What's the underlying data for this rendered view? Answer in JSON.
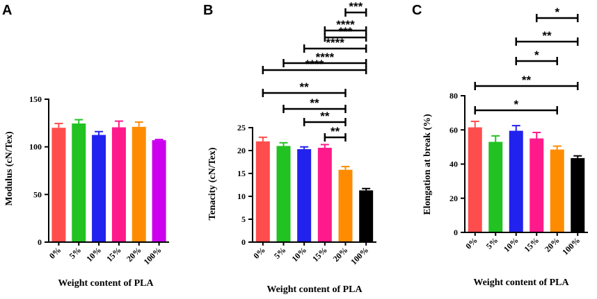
{
  "chart_data": [
    {
      "panel": "A",
      "type": "bar",
      "title": "",
      "xlabel": "Weight content of PLA",
      "ylabel": "Modulus (cN/Tex)",
      "categories": [
        "0%",
        "5%",
        "10%",
        "15%",
        "20%",
        "100%"
      ],
      "values": [
        120,
        124.5,
        112.5,
        120.5,
        121,
        107
      ],
      "errors": [
        4.5,
        4,
        3.5,
        6.5,
        5,
        0.7
      ],
      "colors": [
        "#ff4d4d",
        "#22c222",
        "#2222ee",
        "#ff1a8c",
        "#ff8c00",
        "#cc00ee"
      ],
      "ylim": [
        0,
        150
      ],
      "yticks": [
        0,
        50,
        100,
        150
      ],
      "significance": []
    },
    {
      "panel": "B",
      "type": "bar",
      "title": "",
      "xlabel": "Weight content of PLA",
      "ylabel": "Tenacity (cN/Tex)",
      "categories": [
        "0%",
        "5%",
        "10%",
        "15%",
        "20%",
        "100%"
      ],
      "values": [
        22,
        21,
        20.3,
        20.6,
        15.8,
        11.3
      ],
      "errors": [
        0.9,
        0.7,
        0.5,
        0.7,
        0.7,
        0.4
      ],
      "colors": [
        "#ff4d4d",
        "#22c222",
        "#2222ee",
        "#ff1a8c",
        "#ff8c00",
        "#000000"
      ],
      "ylim": [
        0,
        25
      ],
      "yticks": [
        0,
        5,
        10,
        15,
        20,
        25
      ],
      "significance": [
        {
          "from": 3,
          "to": 4,
          "label": "**"
        },
        {
          "from": 2,
          "to": 4,
          "label": "**"
        },
        {
          "from": 1,
          "to": 4,
          "label": "**"
        },
        {
          "from": 0,
          "to": 4,
          "label": "**"
        },
        {
          "from": 0,
          "to": 5,
          "label": "****"
        },
        {
          "from": 1,
          "to": 5,
          "label": "****"
        },
        {
          "from": 2,
          "to": 5,
          "label": "****"
        },
        {
          "from": 3,
          "to": 5,
          "label": "***"
        },
        {
          "from": 3,
          "to": 5,
          "label": "****"
        },
        {
          "from": 4,
          "to": 5,
          "label": "***"
        }
      ]
    },
    {
      "panel": "C",
      "type": "bar",
      "title": "",
      "xlabel": "Weight content of PLA",
      "ylabel": "Elongation at break (%)",
      "categories": [
        "0%",
        "5%",
        "10%",
        "15%",
        "20%",
        "100%"
      ],
      "values": [
        61.5,
        53,
        59.5,
        55,
        48.5,
        43.5
      ],
      "errors": [
        3.5,
        3.5,
        3,
        3.5,
        2,
        1.3
      ],
      "colors": [
        "#ff4d4d",
        "#22c222",
        "#2222ee",
        "#ff1a8c",
        "#ff8c00",
        "#000000"
      ],
      "ylim": [
        0,
        80
      ],
      "yticks": [
        0,
        20,
        40,
        60,
        80
      ],
      "significance": [
        {
          "from": 0,
          "to": 4,
          "label": "*"
        },
        {
          "from": 0,
          "to": 5,
          "label": "**"
        },
        {
          "from": 2,
          "to": 4,
          "label": "*"
        },
        {
          "from": 2,
          "to": 5,
          "label": "**"
        },
        {
          "from": 3,
          "to": 5,
          "label": "*"
        }
      ]
    }
  ]
}
